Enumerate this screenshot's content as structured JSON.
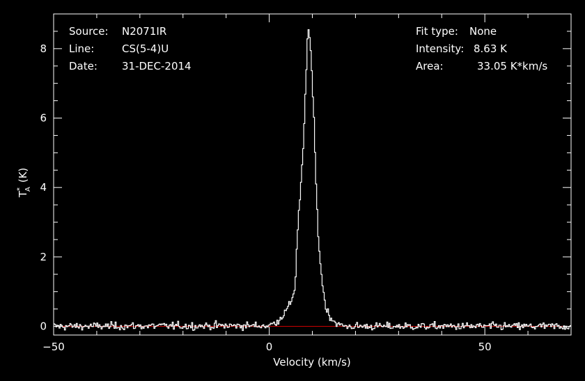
{
  "header_left": {
    "source_label": "Source:",
    "source_value": "N2071IR",
    "line_label": "Line:",
    "line_value": "CS(5-4)U",
    "date_label": "Date:",
    "date_value": "31-DEC-2014"
  },
  "header_right": {
    "fit_label": "Fit type:",
    "fit_value": "None",
    "intensity_label": "Intensity:",
    "intensity_value": "8.63 K",
    "area_label": "Area:",
    "area_value": "33.05 K*km/s"
  },
  "colors": {
    "background": "#000000",
    "trace": "#ffffff",
    "baseline": "#cc0000",
    "axes": "#ffffff"
  },
  "chart_data": {
    "type": "line",
    "style": "histogram-step",
    "xlabel": "Velocity (km/s)",
    "ylabel": "T",
    "ylabel_sub": "A",
    "ylabel_sup": "*",
    "ylabel_unit": "(K)",
    "xlim": [
      -50,
      70
    ],
    "ylim": [
      -0.25,
      9.0
    ],
    "xticks": [
      -50,
      0,
      50
    ],
    "yticks": [
      0,
      2,
      4,
      6,
      8
    ],
    "baseline_y": 0,
    "grid": false,
    "series": [
      {
        "type": "spectrum",
        "noise_rms": 0.06,
        "x": [
          -50,
          0,
          2,
          4,
          5,
          6,
          6.5,
          7,
          7.5,
          8,
          8.5,
          9,
          9.5,
          10,
          10.5,
          11,
          11.5,
          12,
          13,
          14,
          15,
          16,
          17,
          18,
          70
        ],
        "y": [
          0.0,
          0.02,
          0.15,
          0.45,
          0.7,
          1.1,
          2.6,
          3.5,
          4.3,
          5.4,
          7.0,
          8.63,
          8.3,
          7.0,
          5.5,
          3.6,
          2.4,
          1.6,
          0.6,
          0.3,
          0.15,
          0.05,
          0.02,
          0.0,
          0.0
        ]
      }
    ]
  }
}
